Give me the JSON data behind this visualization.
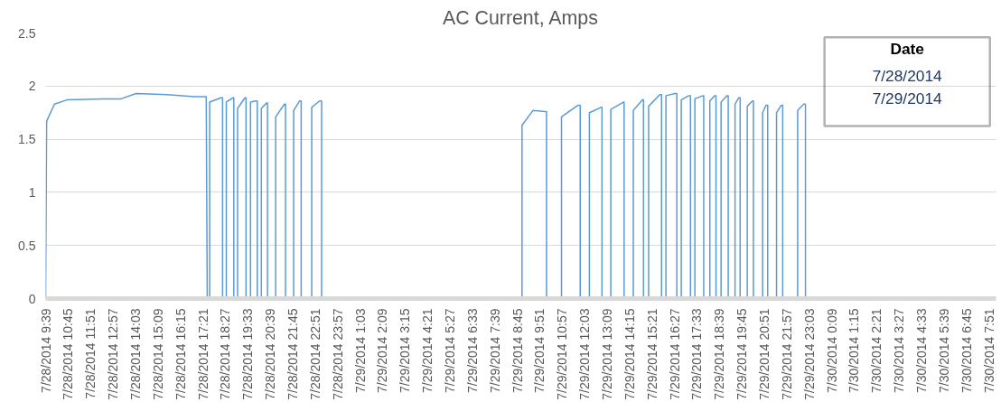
{
  "chart_data": {
    "type": "line",
    "title": "AC Current, Amps",
    "x": [
      "2014-07-28T09:39",
      "2014-07-28T09:42",
      "2014-07-28T10:05",
      "2014-07-28T10:41",
      "2014-07-28T12:28",
      "2014-07-28T13:21",
      "2014-07-28T14:05",
      "2014-07-28T15:36",
      "2014-07-28T16:56",
      "2014-07-28T17:31",
      "2014-07-28T17:34",
      "2014-07-28T17:41",
      "2014-07-28T17:41",
      "2014-07-28T18:14",
      "2014-07-28T18:19",
      "2014-07-28T18:19",
      "2014-07-28T18:30",
      "2014-07-28T18:30",
      "2014-07-28T18:50",
      "2014-07-28T18:52",
      "2014-07-28T18:52",
      "2014-07-28T19:03",
      "2014-07-28T19:03",
      "2014-07-28T19:25",
      "2014-07-28T19:28",
      "2014-07-28T19:28",
      "2014-07-28T19:41",
      "2014-07-28T19:41",
      "2014-07-28T19:56",
      "2014-07-28T20:01",
      "2014-07-28T20:01",
      "2014-07-28T20:13",
      "2014-07-28T20:13",
      "2014-07-28T20:28",
      "2014-07-28T20:31",
      "2014-07-28T20:31",
      "2014-07-28T20:55",
      "2014-07-28T20:55",
      "2014-07-28T21:21",
      "2014-07-28T21:24",
      "2014-07-28T21:24",
      "2014-07-28T21:48",
      "2014-07-28T21:48",
      "2014-07-28T22:05",
      "2014-07-28T22:10",
      "2014-07-28T22:10",
      "2014-07-28T22:41",
      "2014-07-28T22:41",
      "2014-07-28T23:04",
      "2014-07-28T23:10",
      "2014-07-28T23:10",
      "2014-07-29T08:59",
      "2014-07-29T08:59",
      "2014-07-29T09:31",
      "2014-07-29T10:07",
      "2014-07-29T10:11",
      "2014-07-29T10:11",
      "2014-07-29T10:55",
      "2014-07-29T10:55",
      "2014-07-29T11:44",
      "2014-07-29T11:50",
      "2014-07-29T11:50",
      "2014-07-29T12:17",
      "2014-07-29T12:17",
      "2014-07-29T12:51",
      "2014-07-29T12:54",
      "2014-07-29T12:54",
      "2014-07-29T13:20",
      "2014-07-29T13:20",
      "2014-07-29T13:58",
      "2014-07-29T13:59",
      "2014-07-29T13:59",
      "2014-07-29T14:26",
      "2014-07-29T14:26",
      "2014-07-29T14:53",
      "2014-07-29T14:56",
      "2014-07-29T14:56",
      "2014-07-29T15:11",
      "2014-07-29T15:11",
      "2014-07-29T15:44",
      "2014-07-29T15:49",
      "2014-07-29T15:49",
      "2014-07-29T16:02",
      "2014-07-29T16:02",
      "2014-07-29T16:29",
      "2014-07-29T16:34",
      "2014-07-29T16:34",
      "2014-07-29T16:47",
      "2014-07-29T16:47",
      "2014-07-29T17:09",
      "2014-07-29T17:14",
      "2014-07-29T17:14",
      "2014-07-29T17:27",
      "2014-07-29T17:27",
      "2014-07-29T17:51",
      "2014-07-29T17:53",
      "2014-07-29T17:53",
      "2014-07-29T18:11",
      "2014-07-29T18:11",
      "2014-07-29T18:25",
      "2014-07-29T18:29",
      "2014-07-29T18:29",
      "2014-07-29T18:44",
      "2014-07-29T18:44",
      "2014-07-29T19:01",
      "2014-07-29T19:05",
      "2014-07-29T19:05",
      "2014-07-29T19:25",
      "2014-07-29T19:25",
      "2014-07-29T19:36",
      "2014-07-29T19:40",
      "2014-07-29T19:40",
      "2014-07-29T20:01",
      "2014-07-29T20:01",
      "2014-07-29T20:16",
      "2014-07-29T20:19",
      "2014-07-29T20:19",
      "2014-07-29T20:46",
      "2014-07-29T20:46",
      "2014-07-29T20:56",
      "2014-07-29T21:01",
      "2014-07-29T21:01",
      "2014-07-29T21:27",
      "2014-07-29T21:27",
      "2014-07-29T21:41",
      "2014-07-29T21:45",
      "2014-07-29T21:45",
      "2014-07-29T22:29",
      "2014-07-29T22:29",
      "2014-07-29T22:47",
      "2014-07-29T22:52",
      "2014-07-29T22:52",
      "2014-07-30T07:51"
    ],
    "series": [
      {
        "color": "#5b9bd5",
        "values": [
          0,
          1.67,
          1.83,
          1.87,
          1.88,
          1.88,
          1.93,
          1.92,
          1.9,
          1.9,
          0,
          0,
          1.85,
          1.89,
          1.89,
          0,
          0,
          1.85,
          1.89,
          1.89,
          0,
          0,
          1.79,
          1.89,
          1.89,
          0,
          0,
          1.85,
          1.86,
          1.86,
          0,
          0,
          1.79,
          1.84,
          1.84,
          0,
          0,
          1.71,
          1.83,
          1.83,
          0,
          0,
          1.77,
          1.86,
          1.86,
          0,
          0,
          1.8,
          1.86,
          1.86,
          0,
          0,
          1.63,
          1.77,
          1.76,
          1.76,
          0,
          0,
          1.71,
          1.82,
          1.82,
          0,
          0,
          1.75,
          1.8,
          1.8,
          0,
          0,
          1.78,
          1.85,
          1.85,
          0,
          0,
          1.77,
          1.87,
          1.87,
          0,
          0,
          1.81,
          1.92,
          1.92,
          0,
          0,
          1.91,
          1.93,
          1.93,
          0,
          0,
          1.87,
          1.91,
          1.91,
          0,
          0,
          1.88,
          1.91,
          1.91,
          0,
          0,
          1.86,
          1.91,
          1.91,
          0,
          0,
          1.85,
          1.91,
          1.91,
          0,
          0,
          1.83,
          1.89,
          1.89,
          0,
          0,
          1.81,
          1.86,
          1.86,
          0,
          0,
          1.75,
          1.82,
          1.82,
          0,
          0,
          1.75,
          1.82,
          1.82,
          0,
          0,
          1.77,
          1.83,
          1.83,
          0,
          0
        ]
      }
    ],
    "xlim": [
      "2014-07-28T09:39",
      "2014-07-30T08:12"
    ],
    "xticks": [
      {
        "value": "2014-07-28T09:39",
        "label": "7/28/2014 9:39"
      },
      {
        "value": "2014-07-28T10:45",
        "label": "7/28/2014 10:45"
      },
      {
        "value": "2014-07-28T11:51",
        "label": "7/28/2014 11:51"
      },
      {
        "value": "2014-07-28T12:57",
        "label": "7/28/2014 12:57"
      },
      {
        "value": "2014-07-28T14:03",
        "label": "7/28/2014 14:03"
      },
      {
        "value": "2014-07-28T15:09",
        "label": "7/28/2014 15:09"
      },
      {
        "value": "2014-07-28T16:15",
        "label": "7/28/2014 16:15"
      },
      {
        "value": "2014-07-28T17:21",
        "label": "7/28/2014 17:21"
      },
      {
        "value": "2014-07-28T18:27",
        "label": "7/28/2014 18:27"
      },
      {
        "value": "2014-07-28T19:33",
        "label": "7/28/2014 19:33"
      },
      {
        "value": "2014-07-28T20:39",
        "label": "7/28/2014 20:39"
      },
      {
        "value": "2014-07-28T21:45",
        "label": "7/28/2014 21:45"
      },
      {
        "value": "2014-07-28T22:51",
        "label": "7/28/2014 22:51"
      },
      {
        "value": "2014-07-28T23:57",
        "label": "7/28/2014 23:57"
      },
      {
        "value": "2014-07-29T01:03",
        "label": "7/29/2014 1:03"
      },
      {
        "value": "2014-07-29T02:09",
        "label": "7/29/2014 2:09"
      },
      {
        "value": "2014-07-29T03:15",
        "label": "7/29/2014 3:15"
      },
      {
        "value": "2014-07-29T04:21",
        "label": "7/29/2014 4:21"
      },
      {
        "value": "2014-07-29T05:27",
        "label": "7/29/2014 5:27"
      },
      {
        "value": "2014-07-29T06:33",
        "label": "7/29/2014 6:33"
      },
      {
        "value": "2014-07-29T07:39",
        "label": "7/29/2014 7:39"
      },
      {
        "value": "2014-07-29T08:45",
        "label": "7/29/2014 8:45"
      },
      {
        "value": "2014-07-29T09:51",
        "label": "7/29/2014 9:51"
      },
      {
        "value": "2014-07-29T10:57",
        "label": "7/29/2014 10:57"
      },
      {
        "value": "2014-07-29T12:03",
        "label": "7/29/2014 12:03"
      },
      {
        "value": "2014-07-29T13:09",
        "label": "7/29/2014 13:09"
      },
      {
        "value": "2014-07-29T14:15",
        "label": "7/29/2014 14:15"
      },
      {
        "value": "2014-07-29T15:21",
        "label": "7/29/2014 15:21"
      },
      {
        "value": "2014-07-29T16:27",
        "label": "7/29/2014 16:27"
      },
      {
        "value": "2014-07-29T17:33",
        "label": "7/29/2014 17:33"
      },
      {
        "value": "2014-07-29T18:39",
        "label": "7/29/2014 18:39"
      },
      {
        "value": "2014-07-29T19:45",
        "label": "7/29/2014 19:45"
      },
      {
        "value": "2014-07-29T20:51",
        "label": "7/29/2014 20:51"
      },
      {
        "value": "2014-07-29T21:57",
        "label": "7/29/2014 21:57"
      },
      {
        "value": "2014-07-29T23:03",
        "label": "7/29/2014 23:03"
      },
      {
        "value": "2014-07-30T00:09",
        "label": "7/30/2014 0:09"
      },
      {
        "value": "2014-07-30T01:15",
        "label": "7/30/2014 1:15"
      },
      {
        "value": "2014-07-30T02:21",
        "label": "7/30/2014 2:21"
      },
      {
        "value": "2014-07-30T03:27",
        "label": "7/30/2014 3:27"
      },
      {
        "value": "2014-07-30T04:33",
        "label": "7/30/2014 4:33"
      },
      {
        "value": "2014-07-30T05:39",
        "label": "7/30/2014 5:39"
      },
      {
        "value": "2014-07-30T06:45",
        "label": "7/30/2014 6:45"
      },
      {
        "value": "2014-07-30T07:51",
        "label": "7/30/2014 7:51"
      }
    ],
    "ylim": [
      0,
      2.5
    ],
    "yticks": [
      0,
      0.5,
      1,
      1.5,
      2,
      2.5
    ],
    "grid": "y",
    "marker": "none",
    "line_style": "solid",
    "annotations": [
      "Date",
      "7/28/2014",
      "7/29/2014"
    ]
  }
}
